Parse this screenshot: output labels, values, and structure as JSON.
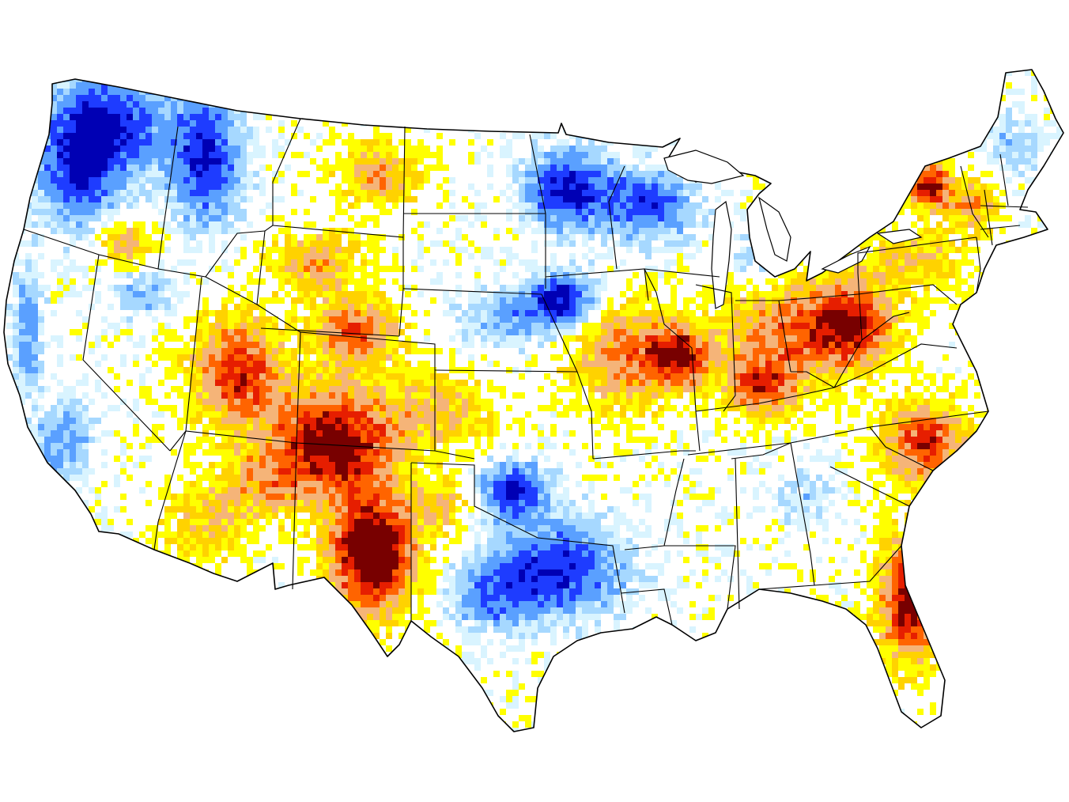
{
  "map": {
    "region": "contiguous-united-states",
    "projection": "albers-equal-area",
    "background_color": "#ffffff",
    "border_color": "#000000",
    "color_scale": [
      "#0000b4",
      "#1e3cff",
      "#5aa0ff",
      "#a6d8ff",
      "#d9f4ff",
      "#ffffff",
      "#ffff00",
      "#ffd200",
      "#f5b478",
      "#ff6400",
      "#e61e00",
      "#780000"
    ],
    "legend": null
  }
}
